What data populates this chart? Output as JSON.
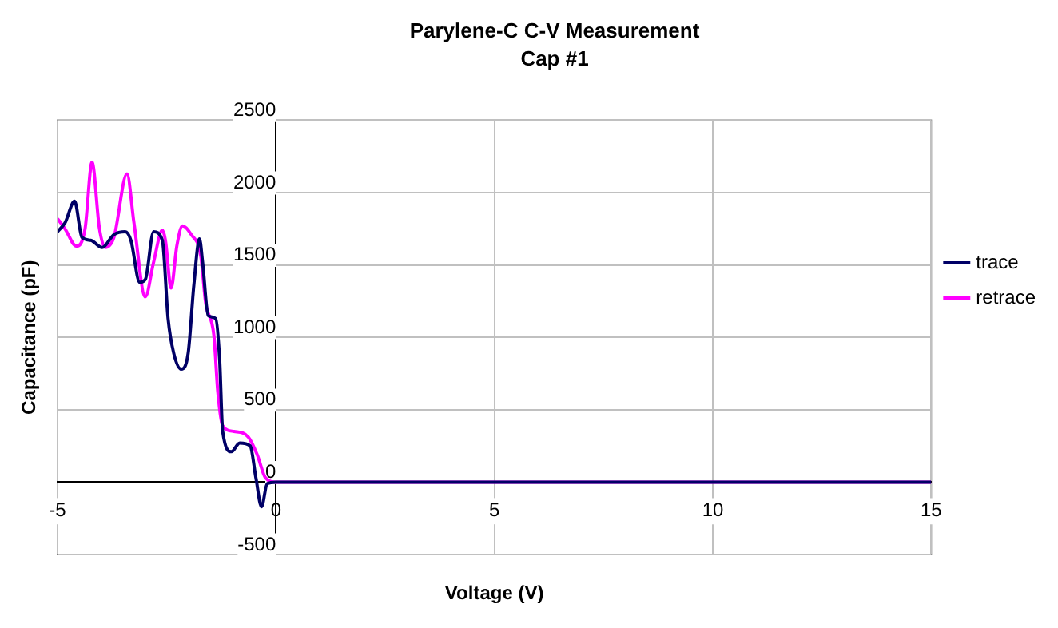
{
  "chart_data": {
    "type": "line",
    "title": "Parylene-C C-V Measurement",
    "subtitle": "Cap #1",
    "xlabel": "Voltage (V)",
    "ylabel": "Capacitance (pF)",
    "xlim": [
      -5,
      15
    ],
    "xticks": [
      -5,
      0,
      5,
      10,
      15
    ],
    "ylim": [
      -500,
      2500
    ],
    "yticks": [
      -500,
      0,
      500,
      1000,
      1500,
      2000,
      2500
    ],
    "grid": true,
    "legend": "right",
    "marker": "none",
    "line_style": "solid",
    "series": [
      {
        "name": "trace",
        "color": "#000066",
        "x": [
          -5,
          -4.83,
          -4.61,
          -4.44,
          -4.24,
          -3.98,
          -3.71,
          -3.45,
          -3.32,
          -3.12,
          -2.99,
          -2.8,
          -2.6,
          -2.47,
          -2.34,
          -2.17,
          -2.01,
          -1.88,
          -1.75,
          -1.68,
          -1.55,
          -1.38,
          -1.29,
          -1.22,
          -1.02,
          -0.83,
          -0.59,
          -0.46,
          -0.33,
          -0.2,
          0,
          15
        ],
        "values": [
          1730,
          1790,
          1940,
          1690,
          1670,
          1620,
          1710,
          1730,
          1670,
          1380,
          1400,
          1730,
          1670,
          1130,
          890,
          780,
          890,
          1360,
          1680,
          1520,
          1150,
          1130,
          850,
          350,
          210,
          270,
          250,
          30,
          -170,
          -10,
          0,
          0
        ]
      },
      {
        "name": "retrace",
        "color": "#ff00ff",
        "x": [
          -5,
          -4.83,
          -4.57,
          -4.37,
          -4.21,
          -4.04,
          -3.91,
          -3.71,
          -3.41,
          -3.25,
          -2.99,
          -2.8,
          -2.6,
          -2.53,
          -2.4,
          -2.27,
          -2.14,
          -1.94,
          -1.72,
          -1.61,
          -1.42,
          -1.33,
          -1.22,
          -0.96,
          -0.63,
          -0.43,
          -0.24,
          0,
          15
        ],
        "values": [
          1820,
          1750,
          1630,
          1750,
          2210,
          1750,
          1620,
          1690,
          2130,
          1790,
          1280,
          1520,
          1740,
          1670,
          1340,
          1630,
          1770,
          1710,
          1560,
          1240,
          1010,
          620,
          390,
          350,
          310,
          190,
          30,
          0,
          0
        ]
      }
    ]
  }
}
